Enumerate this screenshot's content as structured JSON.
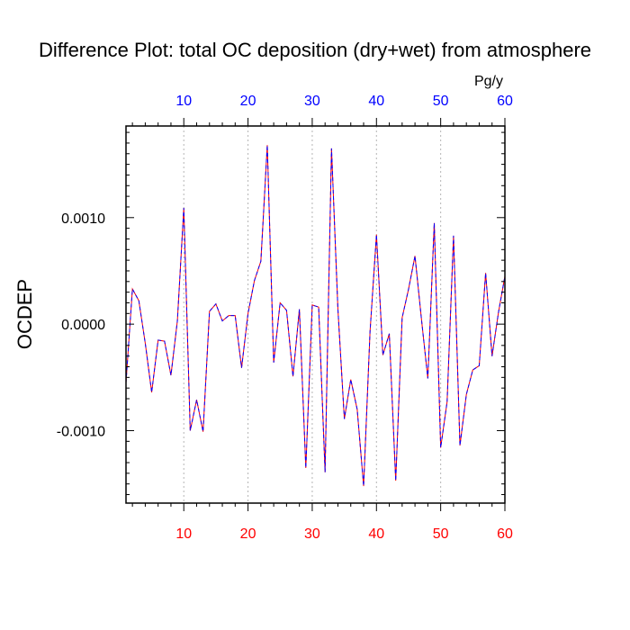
{
  "chart_data": {
    "type": "line",
    "title": "Difference Plot: total OC deposition (dry+wet) from atmosphere",
    "ylabel": "OCDEP",
    "units": "Pg/y",
    "xlim": [
      1,
      60
    ],
    "ylim": [
      -0.00168,
      0.00186
    ],
    "x_ticks": [
      10,
      20,
      30,
      40,
      50,
      60
    ],
    "x_tick_labels": [
      "10",
      "20",
      "30",
      "40",
      "50",
      "60"
    ],
    "y_ticks": [
      -0.001,
      0.0,
      0.001
    ],
    "y_tick_labels": [
      "-0.0010",
      "0.0000",
      "0.0010"
    ],
    "bottom_tick_color": "#ff0000",
    "top_tick_color": "#0000ff",
    "line_colors": [
      "#ff0000",
      "#0000ff"
    ],
    "line_style": "dashed",
    "grid": "vertical dotted at major x ticks",
    "series": [
      {
        "x": [
          1,
          2,
          3,
          4,
          5,
          6,
          7,
          8,
          9,
          10,
          11,
          12,
          13,
          14,
          15,
          16,
          17,
          18,
          19,
          20,
          21,
          22,
          23,
          24,
          25,
          26,
          27,
          28,
          29,
          30,
          31,
          32,
          33,
          34,
          35,
          36,
          37,
          38,
          39,
          40,
          41,
          42,
          43,
          44,
          45,
          46,
          47,
          48,
          49,
          50,
          51,
          52,
          53,
          54,
          55,
          56,
          57,
          58,
          59,
          60
        ],
        "values": [
          -0.00055,
          0.00033,
          0.00022,
          -0.00018,
          -0.00064,
          -0.00015,
          -0.00016,
          -0.00048,
          3e-05,
          0.00109,
          -0.001,
          -0.00071,
          -0.00101,
          0.00012,
          0.00019,
          3e-05,
          8e-05,
          8e-05,
          -0.00041,
          0.0001,
          0.00041,
          0.00059,
          0.00168,
          -0.00036,
          0.0002,
          0.00013,
          -0.00049,
          0.00014,
          -0.00135,
          0.00018,
          0.00016,
          -0.00139,
          0.00165,
          0.00014,
          -0.00089,
          -0.00052,
          -0.0008,
          -0.00152,
          -7e-05,
          0.00084,
          -0.00029,
          -9e-05,
          -0.00147,
          6e-05,
          0.00033,
          0.00064,
          5e-05,
          -0.00051,
          0.00095,
          -0.00116,
          -0.00073,
          0.00083,
          -0.00114,
          -0.00066,
          -0.00043,
          -0.00039,
          0.00048,
          -0.0003,
          0.00011,
          0.00045
        ]
      }
    ]
  }
}
